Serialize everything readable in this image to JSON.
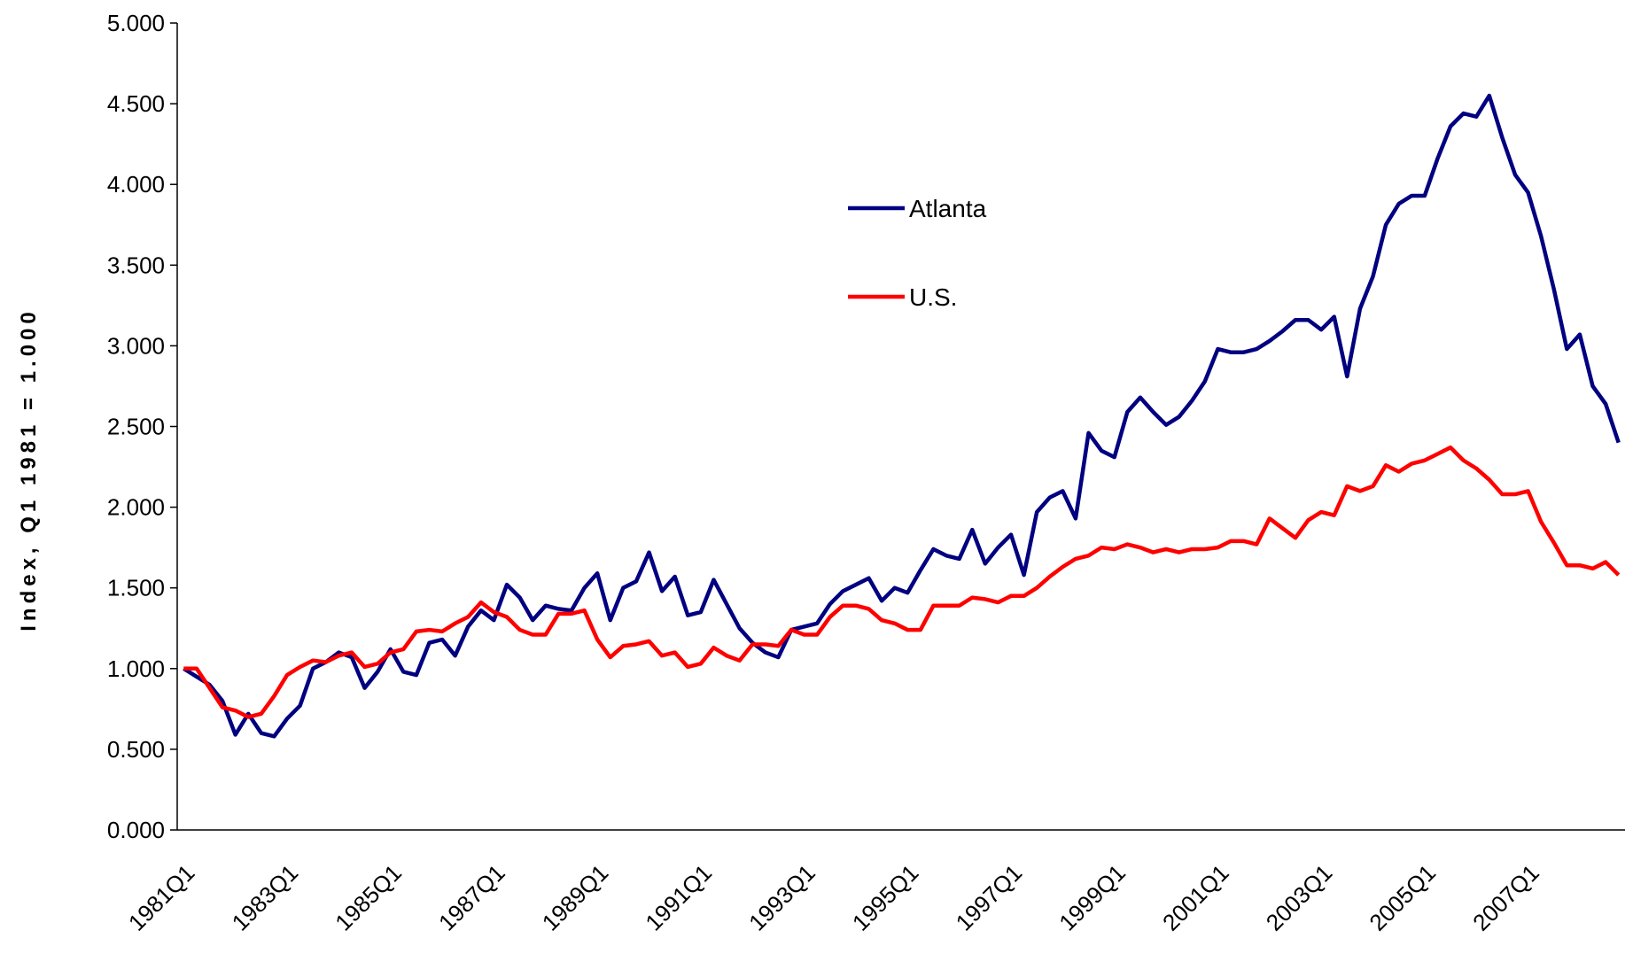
{
  "chart_data": {
    "type": "line",
    "y_label": "Index, Q1 1981 = 1.000",
    "categories": [
      "1981Q1",
      null,
      null,
      null,
      null,
      null,
      null,
      null,
      "1983Q1",
      null,
      null,
      null,
      null,
      null,
      null,
      null,
      "1985Q1",
      null,
      null,
      null,
      null,
      null,
      null,
      null,
      "1987Q1",
      null,
      null,
      null,
      null,
      null,
      null,
      null,
      "1989Q1",
      null,
      null,
      null,
      null,
      null,
      null,
      null,
      "1991Q1",
      null,
      null,
      null,
      null,
      null,
      null,
      null,
      "1993Q1",
      null,
      null,
      null,
      null,
      null,
      null,
      null,
      "1995Q1",
      null,
      null,
      null,
      null,
      null,
      null,
      null,
      "1997Q1",
      null,
      null,
      null,
      null,
      null,
      null,
      null,
      "1999Q1",
      null,
      null,
      null,
      null,
      null,
      null,
      null,
      "2001Q1",
      null,
      null,
      null,
      null,
      null,
      null,
      null,
      "2003Q1",
      null,
      null,
      null,
      null,
      null,
      null,
      null,
      "2005Q1",
      null,
      null,
      null,
      null,
      null,
      null,
      null,
      "2007Q1",
      null,
      null,
      null,
      null,
      null,
      null,
      null
    ],
    "series": [
      {
        "name": "Atlanta",
        "color": "#000080",
        "values": [
          1.0,
          0.95,
          0.9,
          0.8,
          0.59,
          0.72,
          0.6,
          0.58,
          0.69,
          0.77,
          1.0,
          1.04,
          1.1,
          1.07,
          0.88,
          0.98,
          1.12,
          0.98,
          0.96,
          1.16,
          1.18,
          1.08,
          1.26,
          1.36,
          1.3,
          1.52,
          1.44,
          1.3,
          1.39,
          1.37,
          1.36,
          1.5,
          1.59,
          1.3,
          1.5,
          1.54,
          1.72,
          1.48,
          1.57,
          1.33,
          1.35,
          1.55,
          1.4,
          1.25,
          1.16,
          1.1,
          1.07,
          1.24,
          1.26,
          1.28,
          1.4,
          1.48,
          1.52,
          1.56,
          1.42,
          1.5,
          1.47,
          1.61,
          1.74,
          1.7,
          1.68,
          1.86,
          1.65,
          1.75,
          1.83,
          1.58,
          1.97,
          2.06,
          2.1,
          1.93,
          2.46,
          2.35,
          2.31,
          2.59,
          2.68,
          2.59,
          2.51,
          2.56,
          2.66,
          2.78,
          2.98,
          2.96,
          2.96,
          2.98,
          3.03,
          3.09,
          3.16,
          3.16,
          3.1,
          3.18,
          2.81,
          3.23,
          3.43,
          3.75,
          3.88,
          3.93,
          3.93,
          4.16,
          4.36,
          4.44,
          4.42,
          4.55,
          4.29,
          4.06,
          3.95,
          3.68,
          3.35,
          2.98,
          3.07,
          2.75,
          2.64,
          2.4
        ]
      },
      {
        "name": "U.S.",
        "color": "#ff0000",
        "values": [
          1.0,
          1.0,
          0.88,
          0.76,
          0.74,
          0.7,
          0.72,
          0.83,
          0.96,
          1.01,
          1.05,
          1.04,
          1.08,
          1.1,
          1.01,
          1.03,
          1.1,
          1.12,
          1.23,
          1.24,
          1.23,
          1.28,
          1.32,
          1.41,
          1.35,
          1.32,
          1.24,
          1.21,
          1.21,
          1.34,
          1.34,
          1.36,
          1.18,
          1.07,
          1.14,
          1.15,
          1.17,
          1.08,
          1.1,
          1.01,
          1.03,
          1.13,
          1.08,
          1.05,
          1.15,
          1.15,
          1.14,
          1.24,
          1.21,
          1.21,
          1.32,
          1.39,
          1.39,
          1.37,
          1.3,
          1.28,
          1.24,
          1.24,
          1.39,
          1.39,
          1.39,
          1.44,
          1.43,
          1.41,
          1.45,
          1.45,
          1.5,
          1.57,
          1.63,
          1.68,
          1.7,
          1.75,
          1.74,
          1.77,
          1.75,
          1.72,
          1.74,
          1.72,
          1.74,
          1.74,
          1.75,
          1.79,
          1.79,
          1.77,
          1.93,
          1.87,
          1.81,
          1.92,
          1.97,
          1.95,
          2.13,
          2.1,
          2.13,
          2.26,
          2.22,
          2.27,
          2.29,
          2.33,
          2.37,
          2.29,
          2.24,
          2.17,
          2.08,
          2.08,
          2.1,
          1.91,
          1.78,
          1.64,
          1.64,
          1.62,
          1.66,
          1.58
        ]
      }
    ],
    "ylim": [
      0,
      5
    ],
    "yticks": [
      {
        "value": 0,
        "label": "0.000"
      },
      {
        "value": 0.5,
        "label": "0.500"
      },
      {
        "value": 1,
        "label": "1.000"
      },
      {
        "value": 1.5,
        "label": "1.500"
      },
      {
        "value": 2,
        "label": "2.000"
      },
      {
        "value": 2.5,
        "label": "2.500"
      },
      {
        "value": 3,
        "label": "3.000"
      },
      {
        "value": 3.5,
        "label": "3.500"
      },
      {
        "value": 4,
        "label": "4.000"
      },
      {
        "value": 4.5,
        "label": "4.500"
      },
      {
        "value": 5,
        "label": "5.000"
      }
    ],
    "grid": false
  }
}
